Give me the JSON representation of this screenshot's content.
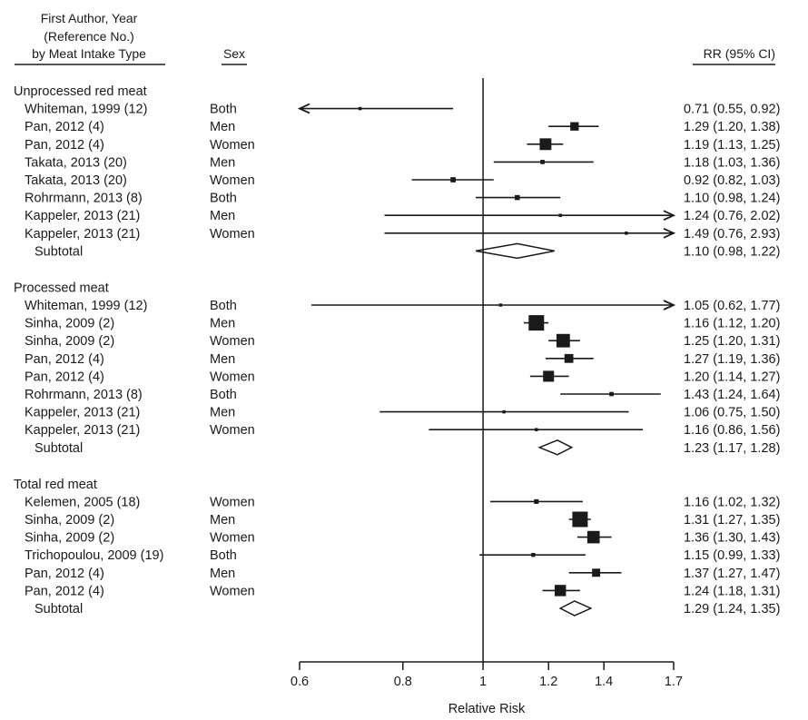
{
  "headers": {
    "author_line1": "First Author, Year",
    "author_line2": "(Reference No.)",
    "author_line3": "by Meat Intake Type",
    "sex": "Sex",
    "rr": "RR (95% CI)"
  },
  "chart_data": {
    "type": "forest",
    "title": "",
    "xlabel": "Relative Risk",
    "x_scale": "log",
    "xlim": [
      0.6,
      1.7
    ],
    "x_ticks": [
      "0.6",
      "0.8",
      "1",
      "1.2",
      "1.4",
      "1.7"
    ],
    "x_tick_values": [
      0.6,
      0.8,
      1.0,
      1.2,
      1.4,
      1.7
    ],
    "reference_line": 1.0,
    "groups": [
      {
        "name": "Unprocessed red meat",
        "studies": [
          {
            "study": "Whiteman, 1999 (12)",
            "sex": "Both",
            "rr": 0.71,
            "lo": 0.55,
            "hi": 0.92,
            "label": "0.71 (0.55, 0.92)"
          },
          {
            "study": "Pan, 2012 (4)",
            "sex": "Men",
            "rr": 1.29,
            "lo": 1.2,
            "hi": 1.38,
            "label": "1.29 (1.20, 1.38)"
          },
          {
            "study": "Pan, 2012 (4)",
            "sex": "Women",
            "rr": 1.19,
            "lo": 1.13,
            "hi": 1.25,
            "label": "1.19 (1.13, 1.25)"
          },
          {
            "study": "Takata, 2013 (20)",
            "sex": "Men",
            "rr": 1.18,
            "lo": 1.03,
            "hi": 1.36,
            "label": "1.18 (1.03, 1.36)"
          },
          {
            "study": "Takata, 2013 (20)",
            "sex": "Women",
            "rr": 0.92,
            "lo": 0.82,
            "hi": 1.03,
            "label": "0.92 (0.82, 1.03)"
          },
          {
            "study": "Rohrmann, 2013 (8)",
            "sex": "Both",
            "rr": 1.1,
            "lo": 0.98,
            "hi": 1.24,
            "label": "1.10 (0.98, 1.24)"
          },
          {
            "study": "Kappeler, 2013 (21)",
            "sex": "Men",
            "rr": 1.24,
            "lo": 0.76,
            "hi": 2.02,
            "label": "1.24 (0.76, 2.02)"
          },
          {
            "study": "Kappeler, 2013 (21)",
            "sex": "Women",
            "rr": 1.49,
            "lo": 0.76,
            "hi": 2.93,
            "label": "1.49 (0.76, 2.93)"
          }
        ],
        "subtotal": {
          "label_text": "Subtotal",
          "rr": 1.1,
          "lo": 0.98,
          "hi": 1.22,
          "label": "1.10 (0.98, 1.22)"
        }
      },
      {
        "name": "Processed meat",
        "studies": [
          {
            "study": "Whiteman, 1999 (12)",
            "sex": "Both",
            "rr": 1.05,
            "lo": 0.62,
            "hi": 1.77,
            "label": "1.05 (0.62, 1.77)"
          },
          {
            "study": "Sinha, 2009 (2)",
            "sex": "Men",
            "rr": 1.16,
            "lo": 1.12,
            "hi": 1.2,
            "label": "1.16 (1.12, 1.20)"
          },
          {
            "study": "Sinha, 2009 (2)",
            "sex": "Women",
            "rr": 1.25,
            "lo": 1.2,
            "hi": 1.31,
            "label": "1.25 (1.20, 1.31)"
          },
          {
            "study": "Pan, 2012 (4)",
            "sex": "Men",
            "rr": 1.27,
            "lo": 1.19,
            "hi": 1.36,
            "label": "1.27 (1.19, 1.36)"
          },
          {
            "study": "Pan, 2012 (4)",
            "sex": "Women",
            "rr": 1.2,
            "lo": 1.14,
            "hi": 1.27,
            "label": "1.20 (1.14, 1.27)"
          },
          {
            "study": "Rohrmann, 2013 (8)",
            "sex": "Both",
            "rr": 1.43,
            "lo": 1.24,
            "hi": 1.64,
            "label": "1.43 (1.24, 1.64)"
          },
          {
            "study": "Kappeler, 2013 (21)",
            "sex": "Men",
            "rr": 1.06,
            "lo": 0.75,
            "hi": 1.5,
            "label": "1.06 (0.75, 1.50)"
          },
          {
            "study": "Kappeler, 2013 (21)",
            "sex": "Women",
            "rr": 1.16,
            "lo": 0.86,
            "hi": 1.56,
            "label": "1.16 (0.86, 1.56)"
          }
        ],
        "subtotal": {
          "label_text": "Subtotal",
          "rr": 1.23,
          "lo": 1.17,
          "hi": 1.28,
          "label": "1.23 (1.17, 1.28)"
        }
      },
      {
        "name": "Total red meat",
        "studies": [
          {
            "study": "Kelemen, 2005 (18)",
            "sex": "Women",
            "rr": 1.16,
            "lo": 1.02,
            "hi": 1.32,
            "label": "1.16 (1.02, 1.32)"
          },
          {
            "study": "Sinha, 2009 (2)",
            "sex": "Men",
            "rr": 1.31,
            "lo": 1.27,
            "hi": 1.35,
            "label": "1.31 (1.27, 1.35)"
          },
          {
            "study": "Sinha, 2009 (2)",
            "sex": "Women",
            "rr": 1.36,
            "lo": 1.3,
            "hi": 1.43,
            "label": "1.36 (1.30, 1.43)"
          },
          {
            "study": "Trichopoulou, 2009 (19)",
            "sex": "Both",
            "rr": 1.15,
            "lo": 0.99,
            "hi": 1.33,
            "label": "1.15 (0.99, 1.33)"
          },
          {
            "study": "Pan, 2012 (4)",
            "sex": "Men",
            "rr": 1.37,
            "lo": 1.27,
            "hi": 1.47,
            "label": "1.37 (1.27, 1.47)"
          },
          {
            "study": "Pan, 2012 (4)",
            "sex": "Women",
            "rr": 1.24,
            "lo": 1.18,
            "hi": 1.31,
            "label": "1.24 (1.18, 1.31)"
          }
        ],
        "subtotal": {
          "label_text": "Subtotal",
          "rr": 1.29,
          "lo": 1.24,
          "hi": 1.35,
          "label": "1.29 (1.24, 1.35)"
        }
      }
    ]
  }
}
